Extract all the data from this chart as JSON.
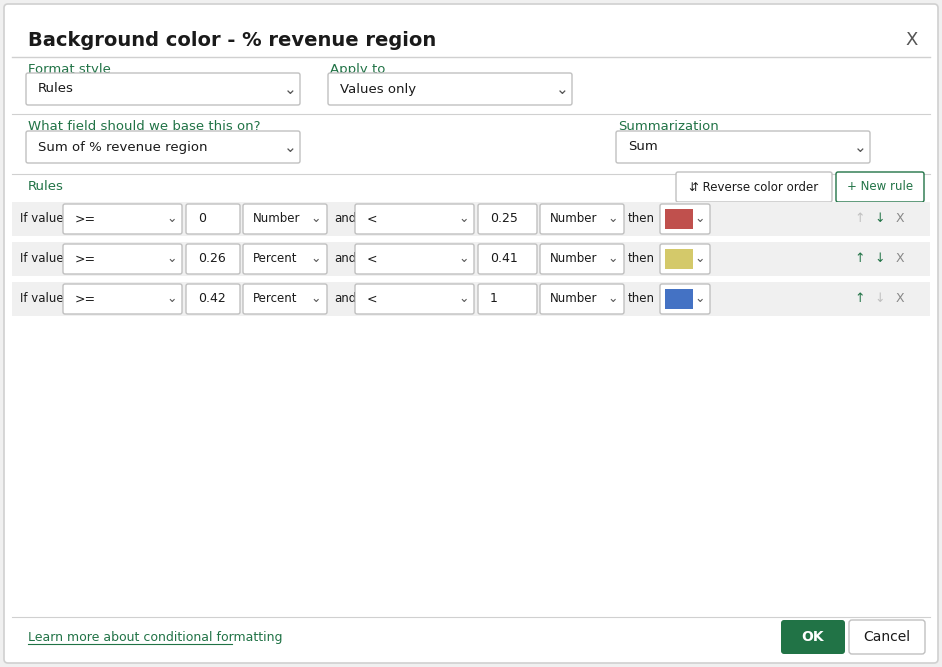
{
  "title": "Background color - % revenue region",
  "close_btn": "X",
  "format_style_label": "Format style",
  "apply_to_label": "Apply to",
  "format_style_value": "Rules",
  "apply_to_value": "Values only",
  "field_label": "What field should we base this on?",
  "summarization_label": "Summarization",
  "field_value": "Sum of % revenue region",
  "summarization_value": "Sum",
  "rules_label": "Rules",
  "reverse_btn": "⇵ Reverse color order",
  "new_rule_btn": "+ New rule",
  "rules": [
    {
      "op1": ">=",
      "val1": "0",
      "type1": "Number",
      "op2": "<",
      "val2": "0.25",
      "type2": "Number",
      "color": "#c0504d"
    },
    {
      "op1": ">=",
      "val1": "0.26",
      "type1": "Percent",
      "op2": "<",
      "val2": "0.41",
      "type2": "Number",
      "color": "#d4c96a"
    },
    {
      "op1": ">=",
      "val1": "0.42",
      "type1": "Percent",
      "op2": "<",
      "val2": "1",
      "type2": "Number",
      "color": "#4472c4"
    }
  ],
  "learn_more": "Learn more about conditional formatting",
  "ok_btn": "OK",
  "cancel_btn": "Cancel",
  "bg_color": "#ffffff",
  "border_color": "#d0d0d0",
  "label_color": "#217346",
  "title_color": "#1a1a1a",
  "dropdown_border": "#c0c0c0",
  "row_bg": "#f0f0f0",
  "ok_color": "#217346",
  "link_color": "#217346",
  "teal_color": "#217346",
  "arrow_active": "#217346",
  "arrow_inactive": "#c0c0c0"
}
